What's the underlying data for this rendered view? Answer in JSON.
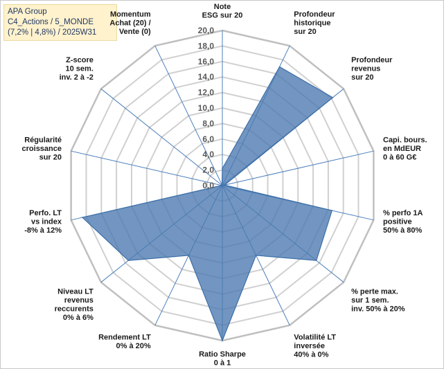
{
  "header": {
    "lines": [
      "APA Group",
      "C4_Actions / 5_MONDE",
      "(7,2% | 4,8%) / 2025W31"
    ]
  },
  "chart_data": {
    "type": "radar",
    "rmin": 0,
    "rmax": 20,
    "ticks": [
      "0,0",
      "2,0",
      "4,0",
      "6,0",
      "8,0",
      "10,0",
      "12,0",
      "14,0",
      "16,0",
      "18,0",
      "20,0"
    ],
    "tick_values": [
      0,
      2,
      4,
      6,
      8,
      10,
      12,
      14,
      16,
      18,
      20
    ],
    "fill_color": "#4a78b0",
    "line_color": "#3c6ea8",
    "axes": [
      {
        "label": [
          "Note",
          "ESG sur 20"
        ],
        "value": 2.2
      },
      {
        "label": [
          "Profondeur",
          "historique",
          "sur 20"
        ],
        "value": 17.0
      },
      {
        "label": [
          "Profondeur",
          "revenus",
          "sur 20"
        ],
        "value": 18.2
      },
      {
        "label": [
          "Capi. bours.",
          "en MdEUR",
          "0 à 60 G€"
        ],
        "value": 0.3
      },
      {
        "label": [
          "% perfo 1A",
          "positive",
          "50% à 80%"
        ],
        "value": 14.5
      },
      {
        "label": [
          "% perte max.",
          "sur 1 sem.",
          "inv. 50% à 20%"
        ],
        "value": 15.5
      },
      {
        "label": [
          "Volatilité LT",
          "inversée",
          "40% à 0%"
        ],
        "value": 10.0
      },
      {
        "label": [
          "Ratio Sharpe",
          "0 à 1"
        ],
        "value": 20.0
      },
      {
        "label": [
          "Rendement LT",
          "0% à 20%"
        ],
        "value": 10.0
      },
      {
        "label": [
          "Niveau LT",
          "revenus",
          "reccurents",
          "0% à 6%"
        ],
        "value": 15.5
      },
      {
        "label": [
          "Perfo. LT",
          "vs index",
          "-8% à 12%"
        ],
        "value": 18.5
      },
      {
        "label": [
          "Régularité",
          "croissance",
          "sur 20"
        ],
        "value": 0.1
      },
      {
        "label": [
          "Z-score",
          "10 sem.",
          "inv. 2 à -2"
        ],
        "value": 0.1
      },
      {
        "label": [
          "Momentum",
          "Achat (20) /",
          "Vente (0)"
        ],
        "value": 0.1
      }
    ]
  }
}
